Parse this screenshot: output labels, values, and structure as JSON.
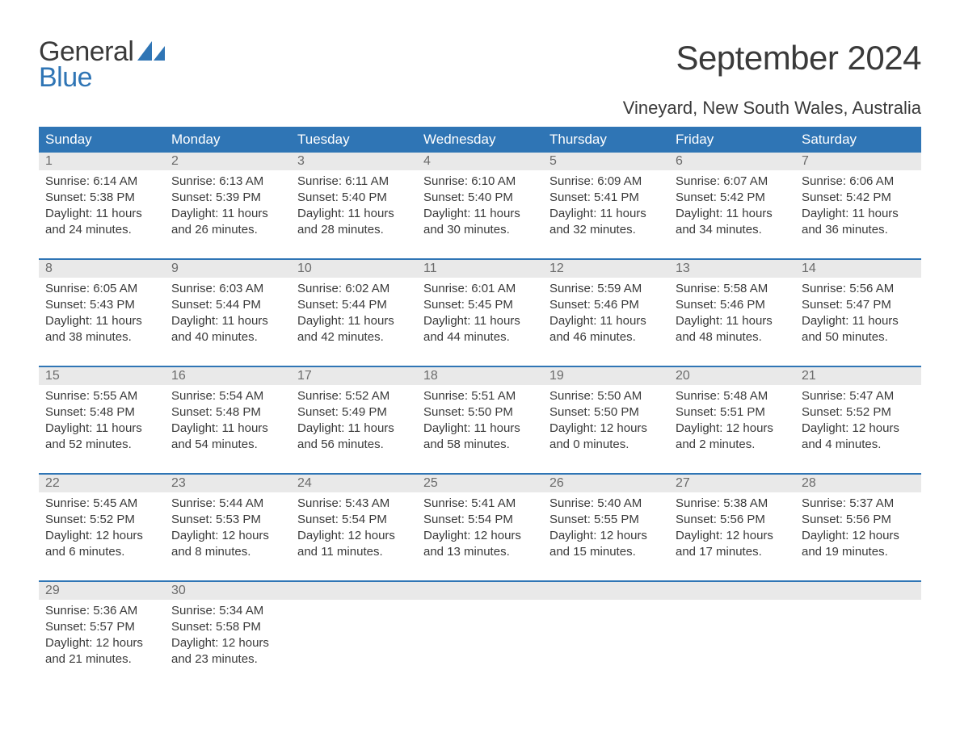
{
  "logo": {
    "top": "General",
    "bottom": "Blue"
  },
  "title": "September 2024",
  "location": "Vineyard, New South Wales, Australia",
  "colors": {
    "header_bg": "#2f75b5",
    "header_text": "#ffffff",
    "daynum_bg": "#e9e9e9",
    "daynum_text": "#6b6b6b",
    "body_text": "#3a3a3a",
    "week_border": "#2f75b5",
    "page_bg": "#ffffff",
    "logo_accent": "#2f75b5"
  },
  "typography": {
    "title_fontsize": 42,
    "location_fontsize": 22,
    "header_fontsize": 17,
    "daynum_fontsize": 16,
    "details_fontsize": 15
  },
  "layout": {
    "columns": 7,
    "rows": 5,
    "first_day_column": 0
  },
  "days_of_week": [
    "Sunday",
    "Monday",
    "Tuesday",
    "Wednesday",
    "Thursday",
    "Friday",
    "Saturday"
  ],
  "weeks": [
    [
      {
        "num": "1",
        "sunrise": "Sunrise: 6:14 AM",
        "sunset": "Sunset: 5:38 PM",
        "daylight": "Daylight: 11 hours and 24 minutes."
      },
      {
        "num": "2",
        "sunrise": "Sunrise: 6:13 AM",
        "sunset": "Sunset: 5:39 PM",
        "daylight": "Daylight: 11 hours and 26 minutes."
      },
      {
        "num": "3",
        "sunrise": "Sunrise: 6:11 AM",
        "sunset": "Sunset: 5:40 PM",
        "daylight": "Daylight: 11 hours and 28 minutes."
      },
      {
        "num": "4",
        "sunrise": "Sunrise: 6:10 AM",
        "sunset": "Sunset: 5:40 PM",
        "daylight": "Daylight: 11 hours and 30 minutes."
      },
      {
        "num": "5",
        "sunrise": "Sunrise: 6:09 AM",
        "sunset": "Sunset: 5:41 PM",
        "daylight": "Daylight: 11 hours and 32 minutes."
      },
      {
        "num": "6",
        "sunrise": "Sunrise: 6:07 AM",
        "sunset": "Sunset: 5:42 PM",
        "daylight": "Daylight: 11 hours and 34 minutes."
      },
      {
        "num": "7",
        "sunrise": "Sunrise: 6:06 AM",
        "sunset": "Sunset: 5:42 PM",
        "daylight": "Daylight: 11 hours and 36 minutes."
      }
    ],
    [
      {
        "num": "8",
        "sunrise": "Sunrise: 6:05 AM",
        "sunset": "Sunset: 5:43 PM",
        "daylight": "Daylight: 11 hours and 38 minutes."
      },
      {
        "num": "9",
        "sunrise": "Sunrise: 6:03 AM",
        "sunset": "Sunset: 5:44 PM",
        "daylight": "Daylight: 11 hours and 40 minutes."
      },
      {
        "num": "10",
        "sunrise": "Sunrise: 6:02 AM",
        "sunset": "Sunset: 5:44 PM",
        "daylight": "Daylight: 11 hours and 42 minutes."
      },
      {
        "num": "11",
        "sunrise": "Sunrise: 6:01 AM",
        "sunset": "Sunset: 5:45 PM",
        "daylight": "Daylight: 11 hours and 44 minutes."
      },
      {
        "num": "12",
        "sunrise": "Sunrise: 5:59 AM",
        "sunset": "Sunset: 5:46 PM",
        "daylight": "Daylight: 11 hours and 46 minutes."
      },
      {
        "num": "13",
        "sunrise": "Sunrise: 5:58 AM",
        "sunset": "Sunset: 5:46 PM",
        "daylight": "Daylight: 11 hours and 48 minutes."
      },
      {
        "num": "14",
        "sunrise": "Sunrise: 5:56 AM",
        "sunset": "Sunset: 5:47 PM",
        "daylight": "Daylight: 11 hours and 50 minutes."
      }
    ],
    [
      {
        "num": "15",
        "sunrise": "Sunrise: 5:55 AM",
        "sunset": "Sunset: 5:48 PM",
        "daylight": "Daylight: 11 hours and 52 minutes."
      },
      {
        "num": "16",
        "sunrise": "Sunrise: 5:54 AM",
        "sunset": "Sunset: 5:48 PM",
        "daylight": "Daylight: 11 hours and 54 minutes."
      },
      {
        "num": "17",
        "sunrise": "Sunrise: 5:52 AM",
        "sunset": "Sunset: 5:49 PM",
        "daylight": "Daylight: 11 hours and 56 minutes."
      },
      {
        "num": "18",
        "sunrise": "Sunrise: 5:51 AM",
        "sunset": "Sunset: 5:50 PM",
        "daylight": "Daylight: 11 hours and 58 minutes."
      },
      {
        "num": "19",
        "sunrise": "Sunrise: 5:50 AM",
        "sunset": "Sunset: 5:50 PM",
        "daylight": "Daylight: 12 hours and 0 minutes."
      },
      {
        "num": "20",
        "sunrise": "Sunrise: 5:48 AM",
        "sunset": "Sunset: 5:51 PM",
        "daylight": "Daylight: 12 hours and 2 minutes."
      },
      {
        "num": "21",
        "sunrise": "Sunrise: 5:47 AM",
        "sunset": "Sunset: 5:52 PM",
        "daylight": "Daylight: 12 hours and 4 minutes."
      }
    ],
    [
      {
        "num": "22",
        "sunrise": "Sunrise: 5:45 AM",
        "sunset": "Sunset: 5:52 PM",
        "daylight": "Daylight: 12 hours and 6 minutes."
      },
      {
        "num": "23",
        "sunrise": "Sunrise: 5:44 AM",
        "sunset": "Sunset: 5:53 PM",
        "daylight": "Daylight: 12 hours and 8 minutes."
      },
      {
        "num": "24",
        "sunrise": "Sunrise: 5:43 AM",
        "sunset": "Sunset: 5:54 PM",
        "daylight": "Daylight: 12 hours and 11 minutes."
      },
      {
        "num": "25",
        "sunrise": "Sunrise: 5:41 AM",
        "sunset": "Sunset: 5:54 PM",
        "daylight": "Daylight: 12 hours and 13 minutes."
      },
      {
        "num": "26",
        "sunrise": "Sunrise: 5:40 AM",
        "sunset": "Sunset: 5:55 PM",
        "daylight": "Daylight: 12 hours and 15 minutes."
      },
      {
        "num": "27",
        "sunrise": "Sunrise: 5:38 AM",
        "sunset": "Sunset: 5:56 PM",
        "daylight": "Daylight: 12 hours and 17 minutes."
      },
      {
        "num": "28",
        "sunrise": "Sunrise: 5:37 AM",
        "sunset": "Sunset: 5:56 PM",
        "daylight": "Daylight: 12 hours and 19 minutes."
      }
    ],
    [
      {
        "num": "29",
        "sunrise": "Sunrise: 5:36 AM",
        "sunset": "Sunset: 5:57 PM",
        "daylight": "Daylight: 12 hours and 21 minutes."
      },
      {
        "num": "30",
        "sunrise": "Sunrise: 5:34 AM",
        "sunset": "Sunset: 5:58 PM",
        "daylight": "Daylight: 12 hours and 23 minutes."
      },
      null,
      null,
      null,
      null,
      null
    ]
  ]
}
